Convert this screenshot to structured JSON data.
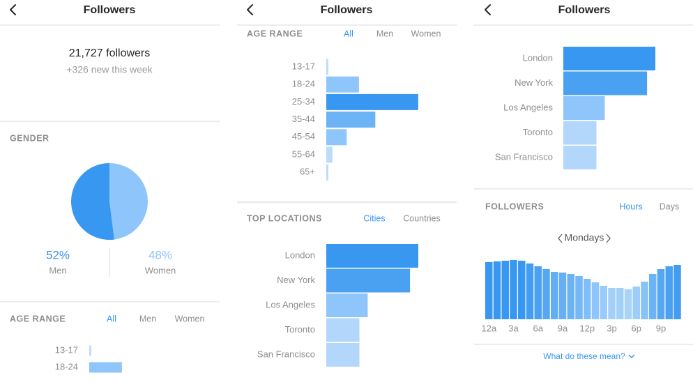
{
  "screens": [
    {
      "title": "Followers",
      "followers": "21,727 followers",
      "new_this_week": "+326 new this week",
      "gender": {
        "heading": "GENDER",
        "chart": {
          "type": "pie",
          "categories": [
            "Men",
            "Women"
          ],
          "values": [
            52,
            48
          ],
          "value_labels": [
            "52%",
            "48%"
          ],
          "colors": [
            "#3897f0",
            "#8ec5fa"
          ]
        }
      },
      "age_range": {
        "heading": "AGE RANGE",
        "tabs": [
          "All",
          "Men",
          "Women"
        ],
        "active_tab": 0,
        "chart": {
          "type": "bar",
          "categories": [
            "13-17",
            "18-24"
          ],
          "values": [
            1,
            16
          ],
          "colors": [
            "#bcdcfb",
            "#8ec5fa"
          ]
        }
      }
    },
    {
      "title": "Followers",
      "age_range": {
        "heading": "AGE RANGE",
        "tabs": [
          "All",
          "Men",
          "Women"
        ],
        "active_tab": 0,
        "chart": {
          "type": "bar",
          "categories": [
            "13-17",
            "18-24",
            "25-34",
            "35-44",
            "45-54",
            "55-64",
            "65+"
          ],
          "values": [
            1,
            16,
            45,
            24,
            10,
            3,
            1
          ],
          "colors": [
            "#bcdcfb",
            "#8ec5fa",
            "#3897f0",
            "#6bb3f5",
            "#8ec5fa",
            "#bcdcfb",
            "#bcdcfb"
          ]
        }
      },
      "top_locations": {
        "heading": "TOP LOCATIONS",
        "tabs": [
          "Cities",
          "Countries"
        ],
        "active_tab": 0,
        "chart": {
          "type": "bar",
          "categories": [
            "London",
            "New York",
            "Los Angeles",
            "Toronto",
            "San Francisco"
          ],
          "values": [
            100,
            91,
            45,
            36,
            36
          ],
          "colors": [
            "#3897f0",
            "#4aa1f2",
            "#8ec5fa",
            "#b3d7fb",
            "#b3d7fb"
          ]
        }
      }
    },
    {
      "title": "Followers",
      "top_locations": {
        "chart": {
          "type": "bar",
          "categories": [
            "London",
            "New York",
            "Los Angeles",
            "Toronto",
            "San Francisco"
          ],
          "values": [
            100,
            91,
            45,
            36,
            36
          ],
          "colors": [
            "#3897f0",
            "#4aa1f2",
            "#8ec5fa",
            "#b3d7fb",
            "#b3d7fb"
          ]
        }
      },
      "followers_chart": {
        "heading": "FOLLOWERS",
        "tabs": [
          "Hours",
          "Days"
        ],
        "active_tab": 0,
        "day": "Mondays",
        "chart": {
          "type": "column",
          "categories": [
            "12a",
            null,
            null,
            "3a",
            null,
            null,
            "6a",
            null,
            null,
            "9a",
            null,
            null,
            "12p",
            null,
            null,
            "3p",
            null,
            null,
            "6p",
            null,
            null,
            "9p",
            null,
            null
          ],
          "values": [
            82,
            83,
            84,
            85,
            84,
            80,
            76,
            72,
            68,
            67,
            65,
            62,
            58,
            53,
            48,
            45,
            45,
            43,
            47,
            54,
            65,
            72,
            76,
            78
          ],
          "colors": [
            "#3897f0",
            "#3897f0",
            "#3897f0",
            "#3897f0",
            "#3897f0",
            "#429cf1",
            "#4aa1f2",
            "#56a7f3",
            "#62adf4",
            "#66aff4",
            "#6bb3f5",
            "#74b8f6",
            "#80bef7",
            "#8ec5fa",
            "#9acbf9",
            "#a3d0f9",
            "#a3d0f9",
            "#a8d3fa",
            "#9ecdf9",
            "#88c2f7",
            "#6bb3f5",
            "#56a7f3",
            "#4aa1f2",
            "#429cf1"
          ]
        }
      },
      "help": "What do these mean?"
    }
  ]
}
